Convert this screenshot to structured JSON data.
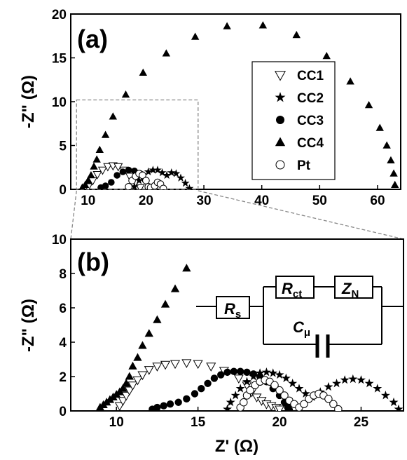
{
  "figure": {
    "panel_a_label": "(a)",
    "panel_b_label": "(b)"
  },
  "chart_data": [
    {
      "type": "scatter",
      "panel": "(a)",
      "xlabel": "",
      "ylabel": "-Z\" (Ω)",
      "xlim": [
        7,
        64
      ],
      "ylim": [
        0,
        20
      ],
      "xticks": [
        10,
        20,
        30,
        40,
        50,
        60
      ],
      "yticks": [
        0,
        5,
        10,
        15,
        20
      ],
      "grid": false,
      "legend": "right",
      "inset_box": {
        "x": [
          8,
          29
        ],
        "y": [
          0,
          10.2
        ]
      },
      "series": [
        {
          "name": "CC1",
          "marker": "triangle-down-open",
          "x": [
            10.0,
            10.8,
            11.6,
            12.5,
            13.4,
            14.3,
            15.2,
            16.2,
            17.2,
            18.2,
            19.0
          ],
          "y": [
            0.3,
            1.0,
            1.7,
            2.2,
            2.6,
            2.7,
            2.6,
            2.2,
            1.5,
            0.8,
            0.2
          ]
        },
        {
          "name": "CC2",
          "marker": "star",
          "x": [
            18.0,
            18.8,
            19.6,
            20.4,
            21.2,
            22.0,
            22.8,
            23.6,
            24.4,
            25.2,
            26.0,
            26.8,
            27.5
          ],
          "y": [
            0.3,
            1.0,
            1.6,
            2.0,
            2.2,
            2.2,
            1.9,
            1.6,
            1.9,
            1.8,
            1.3,
            0.7,
            0.1
          ]
        },
        {
          "name": "CC3",
          "marker": "circle-filled",
          "x": [
            12.2,
            13.0,
            14.0,
            15.0,
            16.0,
            17.0,
            18.0,
            19.0,
            19.8,
            20.4
          ],
          "y": [
            0.2,
            0.4,
            0.8,
            1.6,
            2.0,
            2.2,
            2.1,
            1.8,
            1.1,
            0.3
          ]
        },
        {
          "name": "CC4",
          "marker": "triangle-up-filled",
          "x": [
            9.0,
            9.5,
            10.0,
            10.5,
            11.0,
            11.5,
            12.0,
            13.0,
            14.3,
            16.5,
            19.5,
            23.5,
            28.5,
            34.0,
            40.2,
            46.0,
            51.2,
            55.3,
            58.5,
            60.4,
            61.6,
            62.3,
            62.8,
            63.0
          ],
          "y": [
            0.2,
            0.5,
            1.0,
            1.6,
            2.6,
            3.4,
            4.5,
            6.2,
            8.3,
            10.8,
            13.3,
            15.5,
            17.4,
            18.6,
            18.7,
            17.6,
            15.2,
            12.3,
            9.6,
            7.0,
            5.0,
            3.3,
            1.8,
            0.5
          ]
        },
        {
          "name": "Pt",
          "marker": "circle-open",
          "x": [
            17.0,
            17.6,
            18.2,
            18.8,
            19.4,
            20.0,
            20.4,
            20.8,
            21.5,
            22.0,
            22.5,
            23.0
          ],
          "y": [
            0.3,
            1.0,
            1.5,
            1.8,
            1.6,
            1.0,
            0.3,
            0.2,
            0.4,
            0.8,
            0.6,
            0.1
          ]
        }
      ]
    },
    {
      "type": "scatter",
      "panel": "(b)",
      "xlabel": "Z' (Ω)",
      "ylabel": "-Z\" (Ω)",
      "xlim": [
        7.2,
        27.6
      ],
      "ylim": [
        0,
        10
      ],
      "xticks": [
        10,
        15,
        20,
        25
      ],
      "yticks": [
        0,
        2,
        4,
        6,
        8,
        10
      ],
      "grid": false,
      "inset_circuit": {
        "Rs": "R",
        "Rs_sub": "s",
        "Rct": "R",
        "Rct_sub": "ct",
        "ZN": "Z",
        "ZN_sub": "N",
        "Cmu": "C",
        "Cmu_sub": "μ"
      },
      "series": [
        {
          "name": "CC1",
          "marker": "triangle-down-open",
          "x": [
            10.2,
            10.4,
            10.6,
            10.8,
            11.0,
            11.3,
            11.6,
            12.0,
            12.5,
            13.0,
            13.6,
            14.3,
            15.0,
            15.8,
            16.6,
            17.5,
            18.0,
            18.3,
            18.6,
            18.9,
            19.2,
            19.5,
            19.8,
            20.0
          ],
          "y": [
            0.3,
            0.6,
            0.9,
            1.2,
            1.5,
            1.8,
            2.1,
            2.4,
            2.6,
            2.7,
            2.75,
            2.8,
            2.75,
            2.6,
            2.35,
            1.9,
            1.5,
            1.1,
            0.8,
            0.6,
            0.4,
            0.3,
            0.2,
            0.1
          ]
        },
        {
          "name": "CC2",
          "marker": "star",
          "x": [
            16.8,
            17.0,
            17.3,
            17.6,
            18.0,
            18.4,
            18.8,
            19.2,
            19.6,
            20.0,
            20.4,
            20.8,
            21.2,
            21.6,
            22.0,
            22.5,
            23.0,
            23.5,
            24.0,
            24.5,
            25.0,
            25.5,
            26.0,
            26.5,
            27.0,
            27.3
          ],
          "y": [
            0.1,
            0.5,
            0.9,
            1.3,
            1.7,
            2.0,
            2.2,
            2.25,
            2.2,
            2.1,
            1.9,
            1.6,
            1.3,
            1.0,
            0.8,
            1.1,
            1.4,
            1.6,
            1.8,
            1.85,
            1.8,
            1.6,
            1.3,
            0.9,
            0.5,
            0.1
          ]
        },
        {
          "name": "CC3",
          "marker": "circle-filled",
          "x": [
            12.2,
            12.5,
            12.9,
            13.3,
            13.8,
            14.3,
            14.8,
            15.2,
            15.6,
            16.0,
            16.4,
            16.8,
            17.2,
            17.6,
            18.0,
            18.4,
            18.8,
            19.2,
            19.6,
            20.0,
            20.3,
            20.5,
            20.6
          ],
          "y": [
            0.1,
            0.2,
            0.3,
            0.4,
            0.5,
            0.7,
            1.0,
            1.3,
            1.6,
            1.9,
            2.1,
            2.25,
            2.3,
            2.3,
            2.25,
            2.15,
            2.0,
            1.7,
            1.3,
            0.9,
            0.5,
            0.2,
            0.05
          ]
        },
        {
          "name": "CC4",
          "marker": "triangle-up-filled",
          "x": [
            9.0,
            9.2,
            9.4,
            9.6,
            9.8,
            10.0,
            10.2,
            10.4,
            10.6,
            10.8,
            11.0,
            11.3,
            11.6,
            12.0,
            12.5,
            13.0,
            13.6,
            14.3
          ],
          "y": [
            0.2,
            0.35,
            0.5,
            0.65,
            0.8,
            0.95,
            1.1,
            1.3,
            1.6,
            2.0,
            2.6,
            3.1,
            3.8,
            4.5,
            5.3,
            6.2,
            7.1,
            8.3
          ]
        },
        {
          "name": "Pt",
          "marker": "circle-open",
          "x": [
            17.6,
            17.8,
            18.0,
            18.2,
            18.5,
            18.8,
            19.1,
            19.4,
            19.7,
            20.0,
            20.3,
            20.6,
            20.9,
            21.2,
            21.5,
            21.8,
            22.1,
            22.4,
            22.7,
            23.0,
            23.3,
            23.6
          ],
          "y": [
            0.2,
            0.5,
            0.9,
            1.2,
            1.5,
            1.7,
            1.8,
            1.7,
            1.5,
            1.2,
            0.9,
            0.6,
            0.4,
            0.2,
            0.4,
            0.7,
            0.9,
            1.0,
            0.9,
            0.7,
            0.4,
            0.1
          ]
        }
      ]
    }
  ]
}
